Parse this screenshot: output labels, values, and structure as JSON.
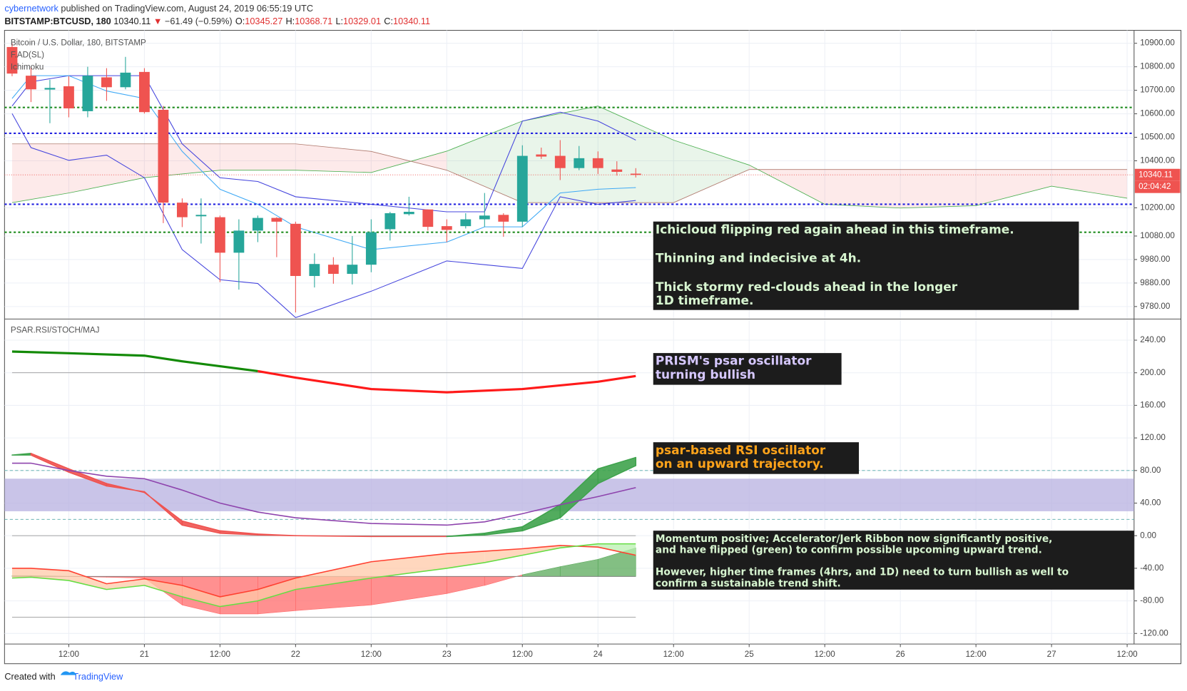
{
  "header": {
    "author": "cybernetwork",
    "published": "published on TradingView.com, August 24, 2019 06:55:19 UTC",
    "symbol": "BITSTAMP:BTCUSD, 180",
    "last": "10340.11",
    "change": "−61.49 (−0.59%)",
    "ohlc": [
      {
        "label": "O:",
        "value": "10345.27"
      },
      {
        "label": "H:",
        "value": "10368.71"
      },
      {
        "label": "L:",
        "value": "10329.01"
      },
      {
        "label": "C:",
        "value": "10340.11"
      }
    ]
  },
  "footer": {
    "created": "Created with",
    "brand": "TradingView"
  },
  "chart_data": [
    {
      "type": "candlestick",
      "title": "Bitcoin / U.S. Dollar, 180, BITSTAMP",
      "indicators": [
        "F.AD(SL)",
        "Ichimoku"
      ],
      "xlim": [
        1.8,
        181.1
      ],
      "ylim": [
        9730,
        10955
      ],
      "yticks": [
        {
          "value": 10900,
          "label": "10900.00"
        },
        {
          "value": 10800,
          "label": "10800.00"
        },
        {
          "value": 10700,
          "label": "10700.00"
        },
        {
          "value": 10600,
          "label": "10600.00"
        },
        {
          "value": 10500,
          "label": "10500.00"
        },
        {
          "value": 10400,
          "label": "10400.00"
        },
        {
          "value": 10200,
          "label": "10200.00"
        },
        {
          "value": 10080,
          "label": "10080.00"
        },
        {
          "value": 9980,
          "label": "9980.00"
        },
        {
          "value": 9880,
          "label": "9880.00"
        },
        {
          "value": 9780,
          "label": "9780.00"
        }
      ],
      "x": [
        3,
        6,
        9,
        12,
        15,
        18,
        21,
        24,
        27,
        30,
        33,
        36,
        39,
        42,
        45,
        48,
        51,
        54,
        57,
        60,
        63,
        66,
        69,
        72,
        75,
        78,
        81,
        84,
        87,
        90,
        93,
        96,
        99,
        102
      ],
      "open": [
        10884,
        10762,
        10703,
        10717,
        10611,
        10755,
        10713,
        10778,
        10617,
        10222,
        10164,
        10160,
        10009,
        10103,
        10157,
        10132,
        9910,
        9958,
        9919,
        9958,
        10109,
        10173,
        10193,
        10122,
        10122,
        10151,
        10170,
        10141,
        10427,
        10421,
        10369,
        10411,
        10363,
        10345.27
      ],
      "high": [
        10900,
        10800,
        10745,
        10760,
        10800,
        10794,
        10842,
        10794,
        10633,
        10240,
        10240,
        10167,
        10151,
        10167,
        10160,
        10141,
        10006,
        9990,
        10080,
        10151,
        10183,
        10247,
        10193,
        10151,
        10177,
        10263,
        10177,
        10466,
        10456,
        10488,
        10463,
        10440,
        10398,
        10368.71
      ],
      "low": [
        10760,
        10650,
        10560,
        10585,
        10585,
        10655,
        10704,
        10601,
        10135,
        10118,
        10048,
        9884,
        9852,
        10054,
        9990,
        9755,
        9861,
        9877,
        9874,
        9926,
        10061,
        10167,
        10103,
        10054,
        10112,
        10119,
        10077,
        10119,
        10408,
        10318,
        10360,
        10344,
        10337,
        10329.01
      ],
      "close": [
        10771,
        10704,
        10710,
        10623,
        10762,
        10713,
        10775,
        10607,
        10222,
        10160,
        10170,
        10009,
        10103,
        10157,
        10141,
        9910,
        9961,
        9919,
        9958,
        10096,
        10177,
        10183,
        10119,
        10106,
        10151,
        10167,
        10141,
        10421,
        10418,
        10369,
        10411,
        10369,
        10353,
        10340.11
      ],
      "up_color": "#26a69a",
      "down_color": "#ef5350",
      "levels": [
        {
          "value": 10627,
          "color": "#1e8c1e"
        },
        {
          "value": 10096,
          "color": "#1e8c1e"
        },
        {
          "value": 10517,
          "color": "#2020e0"
        },
        {
          "value": 10215,
          "color": "#2020e0"
        }
      ],
      "last_price": {
        "value": 10340.11,
        "label": "10340.11",
        "countdown": "02:04:42",
        "color": "#ef5350"
      },
      "cloud": {
        "x": [
          3,
          12,
          24,
          36,
          48,
          60,
          72,
          84,
          96,
          108,
          120,
          132,
          144,
          156,
          168,
          180
        ],
        "span_a": [
          10222,
          10263,
          10328,
          10360,
          10360,
          10350,
          10441,
          10569,
          10633,
          10488,
          10382,
          10215,
          10199,
          10209,
          10292,
          10241
        ],
        "span_b": [
          10472,
          10472,
          10472,
          10472,
          10472,
          10440,
          10360,
          10222,
          10222,
          10222,
          10363,
          10363,
          10363,
          10363,
          10363,
          10363
        ],
        "up_color": "#4caf50",
        "down_color": "#ef5350"
      },
      "lines": [
        {
          "color": "#4444dd",
          "x": [
            3,
            6,
            12,
            18,
            24,
            30,
            36,
            42,
            48,
            60,
            72,
            78,
            84,
            90,
            96,
            102
          ],
          "values": [
            10633,
            10736,
            10762,
            10762,
            10762,
            10472,
            10328,
            10312,
            10247,
            10215,
            10183,
            10183,
            10569,
            10607,
            10569,
            10488
          ]
        },
        {
          "color": "#4444dd",
          "x": [
            3,
            6,
            12,
            18,
            24,
            30,
            36,
            42,
            48,
            60,
            72,
            78,
            84,
            90,
            96,
            102
          ],
          "values": [
            10601,
            10456,
            10402,
            10424,
            10328,
            10022,
            9894,
            9878,
            9733,
            9845,
            9974,
            9958,
            9942,
            10247,
            10215,
            10231
          ]
        },
        {
          "color": "#3fa9f5",
          "x": [
            3,
            6,
            12,
            18,
            24,
            30,
            36,
            42,
            48,
            60,
            72,
            78,
            84,
            90,
            96,
            102
          ],
          "values": [
            10665,
            10762,
            10762,
            10697,
            10665,
            10440,
            10279,
            10215,
            10119,
            10022,
            10054,
            10119,
            10119,
            10263,
            10279,
            10286
          ]
        }
      ],
      "annotations": [
        {
          "color": "#d7f5d0",
          "paragraphs": [
            [
              "Ichicloud flipping red again ahead in this timeframe."
            ],
            [
              "Thinning and indecisive at 4h."
            ],
            [
              "Thick stormy red-clouds ahead in the longer",
              "1D timeframe."
            ]
          ]
        }
      ]
    },
    {
      "type": "line",
      "title": "PSAR.RSI/STOCH/MAJ",
      "xlim": [
        1.8,
        181.1
      ],
      "ylim": [
        -133,
        265
      ],
      "yticks": [
        {
          "value": 240,
          "label": "240.00"
        },
        {
          "value": 200,
          "label": "200.00"
        },
        {
          "value": 160,
          "label": "160.00"
        },
        {
          "value": 120,
          "label": "120.00"
        },
        {
          "value": 80,
          "label": "80.00"
        },
        {
          "value": 40,
          "label": "40.00"
        },
        {
          "value": 0,
          "label": "0.00"
        },
        {
          "value": -40,
          "label": "-40.00"
        },
        {
          "value": -80,
          "label": "-80.00"
        },
        {
          "value": -120,
          "label": "-120.00"
        }
      ],
      "xticks": [
        {
          "value": 12,
          "label": "12:00"
        },
        {
          "value": 24,
          "label": "21"
        },
        {
          "value": 36,
          "label": "12:00"
        },
        {
          "value": 48,
          "label": "22"
        },
        {
          "value": 60,
          "label": "12:00"
        },
        {
          "value": 72,
          "label": "23"
        },
        {
          "value": 84,
          "label": "12:00"
        },
        {
          "value": 96,
          "label": "24"
        },
        {
          "value": 108,
          "label": "12:00"
        },
        {
          "value": 120,
          "label": "25"
        },
        {
          "value": 132,
          "label": "12:00"
        },
        {
          "value": 144,
          "label": "26"
        },
        {
          "value": 156,
          "label": "12:00"
        },
        {
          "value": 168,
          "label": "27"
        },
        {
          "value": 180,
          "label": "12:00"
        }
      ],
      "reference_lines": [
        200,
        0,
        -100
      ],
      "band": [
        30,
        70
      ],
      "band_lines": [
        20,
        80
      ],
      "psar": [
        {
          "color": "#138a07",
          "x": [
            3,
            12,
            24,
            30,
            36,
            42
          ],
          "values": [
            226,
            224,
            221,
            214,
            208,
            202
          ]
        },
        {
          "color": "#ff1a1a",
          "x": [
            42,
            48,
            60,
            72,
            84,
            96,
            102
          ],
          "values": [
            202,
            194,
            180,
            176,
            180,
            189,
            196
          ]
        }
      ],
      "rsi": {
        "color": "#8e44ad",
        "x": [
          3,
          6,
          12,
          18,
          24,
          30,
          36,
          42,
          48,
          60,
          72,
          78,
          84,
          90,
          96,
          102
        ],
        "values": [
          89,
          89,
          80,
          73,
          70,
          56,
          40,
          29,
          22,
          15,
          13,
          17,
          27,
          38,
          48,
          59
        ]
      },
      "ribbon": {
        "x": [
          3,
          6,
          12,
          18,
          24,
          30,
          36,
          42,
          48,
          60,
          72,
          78,
          84,
          90,
          96,
          102
        ],
        "a": [
          99,
          101,
          82,
          64,
          53,
          18,
          6,
          2,
          0,
          -1,
          -1,
          3,
          11,
          38,
          82,
          96
        ],
        "b": [
          99,
          99,
          78,
          61,
          54,
          13,
          3,
          1,
          0,
          -1,
          -1,
          1,
          6,
          22,
          64,
          86
        ],
        "up_color": "#3fa34d",
        "down_color": "#ef5350"
      },
      "momentum": {
        "x": [
          3,
          6,
          12,
          18,
          24,
          30,
          36,
          42,
          48,
          60,
          72,
          78,
          84,
          90,
          96,
          102
        ],
        "fast": [
          -40,
          -40,
          -43,
          -59,
          -53,
          -61,
          -75,
          -66,
          -52,
          -32,
          -22,
          -19,
          -16,
          -12,
          -14,
          -24
        ],
        "slow": [
          -52,
          -51,
          -55,
          -66,
          -61,
          -75,
          -87,
          -80,
          -66,
          -52,
          -40,
          -33,
          -24,
          -15,
          -10,
          -10
        ],
        "fast_color": "#ff4030",
        "slow_color": "#66dd44"
      },
      "accelerator": {
        "x": [
          3,
          6,
          12,
          18,
          24,
          30,
          36,
          42,
          48,
          60,
          72,
          78,
          84,
          90,
          96,
          102
        ],
        "values": [
          -49,
          -49,
          -50,
          -51,
          -52,
          -85,
          -96,
          -96,
          -92,
          -85,
          -71,
          -61,
          -48,
          -38,
          -29,
          -15
        ],
        "baseline": -50,
        "up_color": "#5aa95a",
        "down_color": "#ff6b6b"
      },
      "annotations": [
        {
          "color": "#d6c8ff",
          "paragraphs": [
            [
              "PRISM's psar oscillator",
              "turning bullish"
            ]
          ]
        },
        {
          "color": "#ffa31a",
          "paragraphs": [
            [
              "psar-based RSI oscillator",
              "on an upward trajectory."
            ]
          ]
        },
        {
          "color": "#d7f5d0",
          "paragraphs": [
            [
              "Momentum positive; Accelerator/Jerk Ribbon now significantly positive,",
              "and have flipped (green) to confirm possible upcoming upward trend."
            ],
            [
              "However, higher time frames (4hrs, and 1D) need to turn bullish as well to",
              "confirm a sustainable trend shift."
            ]
          ]
        }
      ]
    }
  ]
}
